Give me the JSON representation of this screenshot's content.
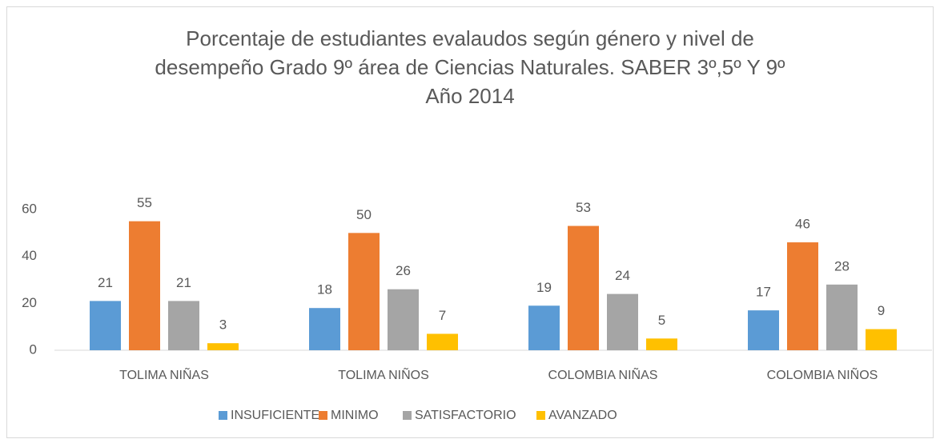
{
  "chart_data": {
    "type": "bar",
    "title": [
      "Porcentaje de  estudiantes evalaudos según género y nivel de",
      "desempeño Grado 9º  área de Ciencias Naturales.   SABER 3º,5º Y 9º",
      "Año 2014"
    ],
    "categories": [
      "TOLIMA NIÑAS",
      "TOLIMA NIÑOS",
      "COLOMBIA NIÑAS",
      "COLOMBIA NIÑOS"
    ],
    "series": [
      {
        "name": "INSUFICIENTE",
        "color": "#5b9bd5",
        "values": [
          21,
          18,
          19,
          17
        ]
      },
      {
        "name": "MINIMO",
        "color": "#ed7d31",
        "values": [
          55,
          50,
          53,
          46
        ]
      },
      {
        "name": "SATISFACTORIO",
        "color": "#a5a5a5",
        "values": [
          21,
          26,
          24,
          28
        ]
      },
      {
        "name": "AVANZADO",
        "color": "#ffc000",
        "values": [
          3,
          7,
          5,
          9
        ]
      }
    ],
    "ylim": [
      0,
      60
    ],
    "yticks": [
      0,
      20,
      40,
      60
    ],
    "grid": false,
    "legend": "bottom"
  }
}
